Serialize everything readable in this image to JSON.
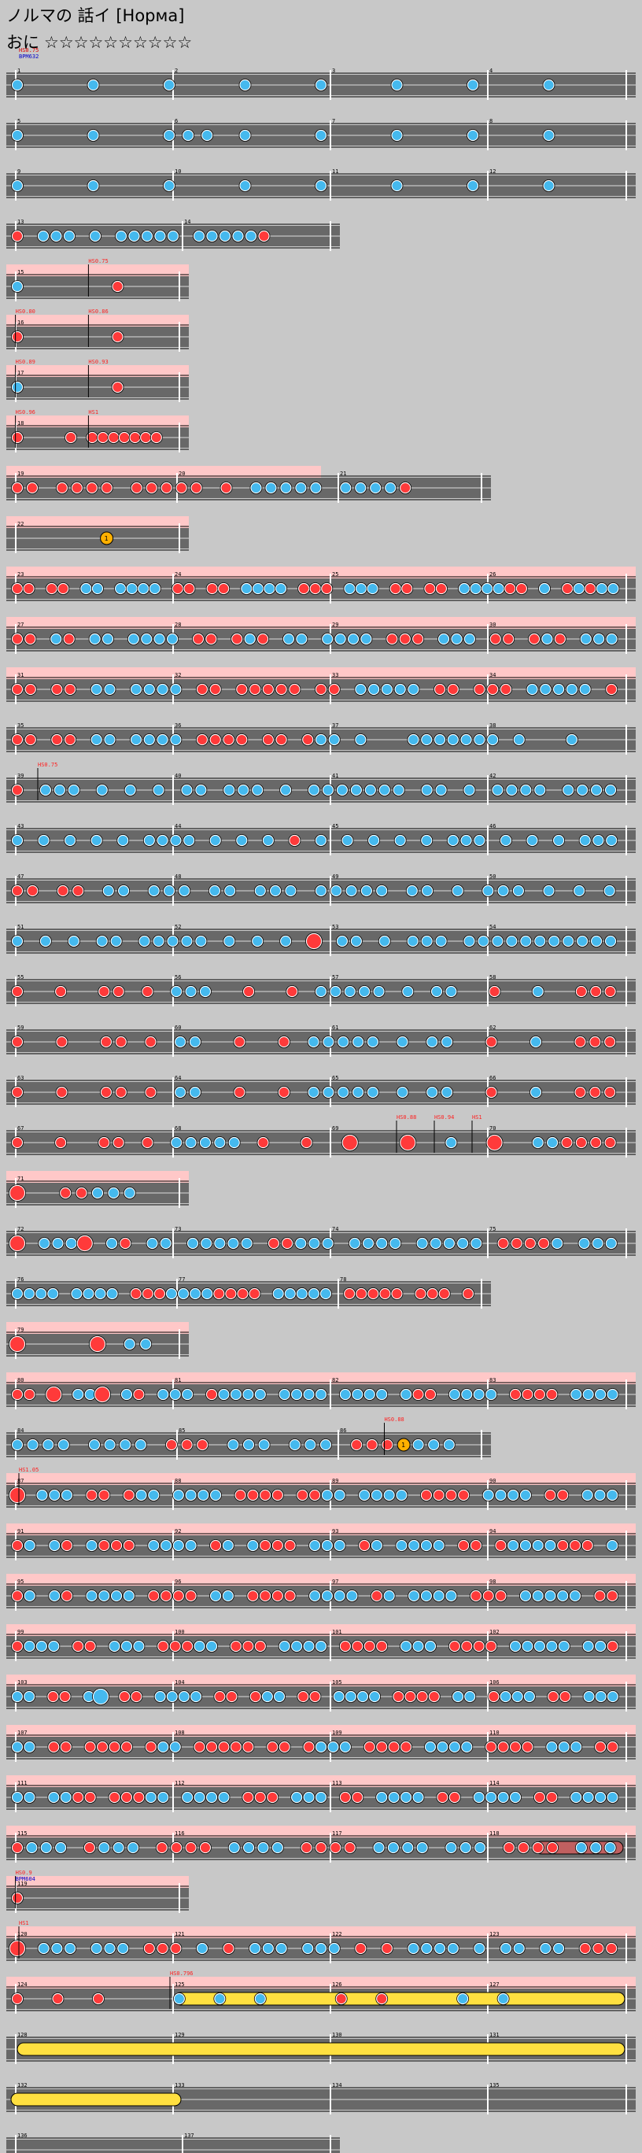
{
  "header": {
    "title": "ノルマの 話イ [Норма]",
    "difficulty_label": "おに",
    "stars_text": "☆☆☆☆☆☆☆☆☆☆",
    "bpm_label": "HS0.75",
    "bpm_value": "BPM632"
  },
  "colors": {
    "background": "#c8c8c8",
    "lane": "#686868",
    "lane_line": "#dddddd",
    "highlight": "#ffc8c8",
    "don": "#ff3a3a",
    "ka": "#45b9ee",
    "drumroll": "#ffe040",
    "measure_line": "#ffffff",
    "annotation": "#ff2020"
  },
  "rows": [
    {
      "measures": [
        "1",
        "2",
        "3",
        "4"
      ],
      "notes": "k   k   k   k   k   k   k   k   "
    },
    {
      "measures": [
        "5",
        "6",
        "7",
        "8"
      ],
      "notes": "k   k   kkk k   k   k   k   k   "
    },
    {
      "measures": [
        "9",
        "10",
        "11",
        "12"
      ],
      "notes": "k   k   k   k   k   k   k   k   "
    },
    {
      "measures": [
        "13",
        "14"
      ],
      "half": true,
      "notes": "d kkk k kkkkk kkkkkd    "
    },
    {
      "measures": [
        "15"
      ],
      "narrow": true,
      "hl": true,
      "notes": "k    d  ",
      "ann": [
        {
          "t": "HS0.75",
          "at": 0.45
        }
      ]
    },
    {
      "measures": [
        "16"
      ],
      "narrow": true,
      "hl": true,
      "notes": "d    d  ",
      "ann": [
        {
          "t": "HS0.80",
          "at": 0.05
        },
        {
          "t": "HS0.86",
          "at": 0.45
        }
      ]
    },
    {
      "measures": [
        "17"
      ],
      "narrow": true,
      "hl": true,
      "notes": "k    d  ",
      "ann": [
        {
          "t": "HS0.89",
          "at": 0.05
        },
        {
          "t": "HS0.93",
          "at": 0.45
        }
      ]
    },
    {
      "measures": [
        "18"
      ],
      "narrow": true,
      "hl": true,
      "notes": "d    d ddddddd ",
      "ann": [
        {
          "t": "HS0.96",
          "at": 0.05
        },
        {
          "t": "HS1",
          "at": 0.45
        }
      ]
    },
    {
      "measures": [
        "19",
        "20",
        "21"
      ],
      "three": true,
      "hl": true,
      "notes": "dd dddd ddddd d kkkkk kkkkd    "
    },
    {
      "measures": [
        "22"
      ],
      "narrow": true,
      "hl": true,
      "balloon": 0.55,
      "notes": "        "
    },
    {
      "measures": [
        "23",
        "24",
        "25",
        "26"
      ],
      "hl": true,
      "notes": "dd dd kk kkkk dd dd kkkk ddd kkk dd dd kkkkdd k dkdkk"
    },
    {
      "measures": [
        "27",
        "28",
        "29",
        "30"
      ],
      "hl": true,
      "notes": "dd kd kk kkkk dd dkd kk kkkk ddd kkk dd dkd kkk"
    },
    {
      "measures": [
        "31",
        "32",
        "33",
        "34"
      ],
      "hl": true,
      "notes": "dd dd kk kkkk dd ddddd dd kkkkk dd ddd kkkkk d"
    },
    {
      "measures": [
        "35",
        "36",
        "37",
        "38"
      ],
      "notes": "dd dd kk kkkk dddd dd dkk k   kkkkkkk k   k   "
    },
    {
      "measures": [
        "39",
        "40",
        "41",
        "42"
      ],
      "notes": "d kkk k k k kk kkk k kkkkkkk kk k kkkk kkkk",
      "ann": [
        {
          "t": "HS0.75",
          "at": 0.05
        }
      ]
    },
    {
      "measures": [
        "43",
        "44",
        "45",
        "46"
      ],
      "notes": "k k k k k kkkk k k k d k k k k k kkk k k k kkk"
    },
    {
      "measures": [
        "47",
        "48",
        "49",
        "50"
      ],
      "notes": "dd dd kk kkk kk kkk kkkkk kk k kkk k k k"
    },
    {
      "measures": [
        "51",
        "52",
        "53",
        "54"
      ],
      "notes": "k k k kk kkkkk k k k D kk k kkk kkkkkkkkkkk"
    },
    {
      "measures": [
        "55",
        "56",
        "57",
        "58"
      ],
      "notes": "d  d  dd d kkk  d  d kkkkk k kk  d  k  ddd"
    },
    {
      "measures": [
        "59",
        "60",
        "61",
        "62"
      ],
      "notes": "d  d  dd d kk  d  d kkkkk k kk  d  k  ddd"
    },
    {
      "measures": [
        "63",
        "64",
        "65",
        "66"
      ],
      "notes": "d  d  dd d kk  d  d kkkkk k kk  d  k  ddd"
    },
    {
      "measures": [
        "67",
        "68",
        "69",
        "70"
      ],
      "notes": "d  d  dd d kkkkk d  d  D   D  k  D  kkdddd",
      "ann": [
        {
          "t": "HS0.88",
          "at": 0.62
        },
        {
          "t": "HS0.94",
          "at": 0.68
        },
        {
          "t": "HS1",
          "at": 0.74
        }
      ]
    },
    {
      "measures": [
        "71"
      ],
      "narrow": true,
      "hl": true,
      "notes": "D  ddkkk  "
    },
    {
      "measures": [
        "72",
        "73",
        "74",
        "75"
      ],
      "notes": "D kkkD kd kk kkkkk ddkkk kkkk kkkkk ddddk kkk"
    },
    {
      "measures": [
        "76",
        "77",
        "78"
      ],
      "three": true,
      "notes": "kkkk kkkk dddkkkkdddd kkkkk ddddd ddd d"
    },
    {
      "measures": [
        "79"
      ],
      "narrow": true,
      "hl": true,
      "notes": "D    D kk "
    },
    {
      "measures": [
        "80",
        "81",
        "82",
        "83"
      ],
      "hl": true,
      "notes": "dd D kkD kd kkk dkkkk kkkk kkkk kdd kkkk dddd kkkk"
    },
    {
      "measures": [
        "84",
        "85",
        "86"
      ],
      "three": true,
      "balloon": 0.82,
      "notes": "kkkk kkkk ddd kkk kkk ddd kkk ",
      "ann": [
        {
          "t": "HS0.88",
          "at": 0.78
        }
      ]
    },
    {
      "measures": [
        "87",
        "88",
        "89",
        "90"
      ],
      "hl": true,
      "notes": "D kkk dd dkk kkkk dddd ddkk kkkk dddd kkkk dd kkk",
      "ann": [
        {
          "t": "HS1.05",
          "at": 0.02
        }
      ]
    },
    {
      "measures": [
        "91",
        "92",
        "93",
        "94"
      ],
      "hl": true,
      "notes": "dk kd kddd kkkk dk kddd kkk dk kkkk dd dkkkkddd k"
    },
    {
      "measures": [
        "95",
        "96",
        "97",
        "98"
      ],
      "hl": true,
      "notes": "dk kd kkkk dddd kk dddd kkkk dk kkkk ddd kkkkk dd"
    },
    {
      "measures": [
        "99",
        "100",
        "101",
        "102"
      ],
      "hl": true,
      "notes": "dkkk dd kkk dddkk ddd kkkk dddd kkk dddd kkkkk kkd"
    },
    {
      "measures": [
        "103",
        "104",
        "105",
        "106"
      ],
      "hl": true,
      "notes": "kk dd kK dd kkkk dd dkk dd kkkk dddd kk dkkk dd kkk"
    },
    {
      "measures": [
        "107",
        "108",
        "109",
        "110"
      ],
      "hl": true,
      "notes": "kk dd dddd dkk ddddd dd dkkk dddd kkkk dddd kkk dd"
    },
    {
      "measures": [
        "111",
        "112",
        "113",
        "114"
      ],
      "hl": true,
      "notes": "kk kkdd dddkk kkkk ddd kkk dd kkkk dd kkkk dd kkkk"
    },
    {
      "measures": [
        "115",
        "116",
        "117",
        "118"
      ],
      "hl": true,
      "roll_tail": true,
      "notes": "dkkk dkkk dddd kkkk dddd kkkk kkk dddd kkk"
    },
    {
      "measures": [
        "119"
      ],
      "narrow": true,
      "hl": true,
      "notes": "d       ",
      "ann": [
        {
          "t": "HS0.9",
          "at": 0.05
        },
        {
          "t": "BPM604",
          "at": 0.05,
          "blue": true
        }
      ]
    },
    {
      "measures": [
        "120",
        "121",
        "122",
        "123"
      ],
      "hl": true,
      "notes": "D kkk kkk ddd k d kkk kkk d d kkkk k kk kk ddd",
      "ann": [
        {
          "t": "HS1",
          "at": 0.02
        }
      ]
    },
    {
      "measures": [
        "124",
        "125",
        "126",
        "127"
      ],
      "hl": true,
      "yellow_from": 0.25,
      "notes": "ddd kkk dd kk  ",
      "ann": [
        {
          "t": "HS0.796",
          "at": 0.26
        }
      ]
    },
    {
      "measures": [
        "128",
        "129",
        "130",
        "131"
      ],
      "yellow_full": true,
      "notes": ""
    },
    {
      "measures": [
        "132",
        "133",
        "134",
        "135"
      ],
      "yellow_to": 0.27,
      "notes": ""
    },
    {
      "measures": [
        "136",
        "137"
      ],
      "half": true,
      "notes": ""
    }
  ]
}
